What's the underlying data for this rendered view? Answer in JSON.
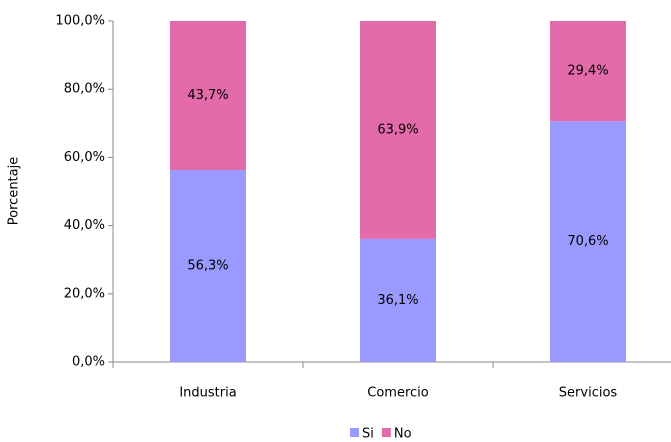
{
  "chart_data": {
    "type": "stacked_bar",
    "y_label": "Porcentaje",
    "categories": [
      "Industria",
      "Comercio",
      "Servicios"
    ],
    "series": [
      {
        "name": "Si",
        "color": "#9999ff",
        "values": [
          56.3,
          36.1,
          70.6
        ],
        "value_labels": [
          "56,3%",
          "36,1%",
          "70,6%"
        ]
      },
      {
        "name": "No",
        "color": "#e46baa",
        "values": [
          43.7,
          63.9,
          29.4
        ],
        "value_labels": [
          "43,7%",
          "63,9%",
          "29,4%"
        ]
      }
    ],
    "ylim": [
      0,
      100
    ],
    "yticks": [
      {
        "value": 0,
        "label": "0,0%"
      },
      {
        "value": 20,
        "label": "20,0%"
      },
      {
        "value": 40,
        "label": "40,0%"
      },
      {
        "value": 60,
        "label": "60,0%"
      },
      {
        "value": 80,
        "label": "80,0%"
      },
      {
        "value": 100,
        "label": "100,0%"
      }
    ],
    "grid": false,
    "legend": "bottom"
  }
}
